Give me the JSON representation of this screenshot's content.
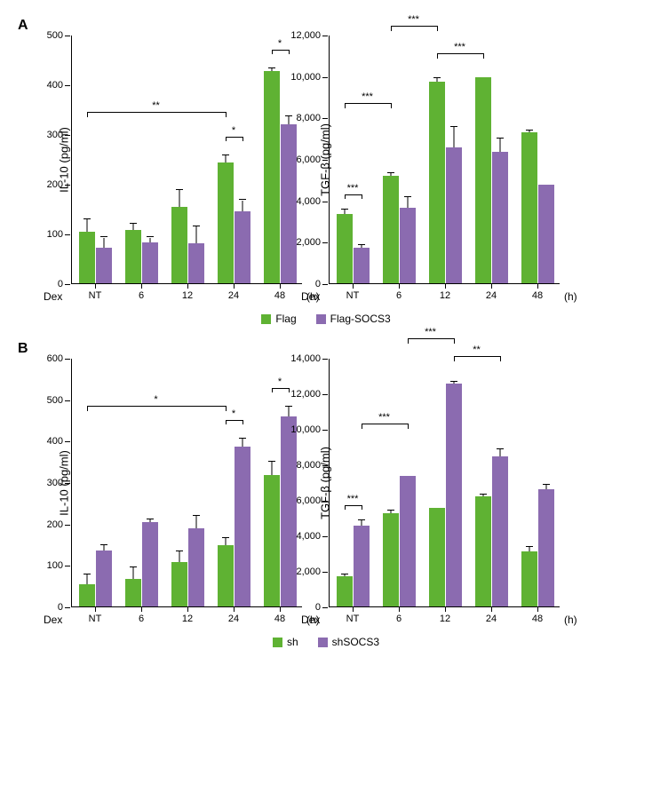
{
  "colors": {
    "series1": "#5fb233",
    "series2": "#8b6bb0",
    "axis": "#000000",
    "bg": "#ffffff"
  },
  "legendA": {
    "s1": "Flag",
    "s2": "Flag-SOCS3"
  },
  "legendB": {
    "s1": "sh",
    "s2": "shSOCS3"
  },
  "xaxis_left_label": "Dex",
  "xaxis_right_label": "(h)",
  "panels": {
    "A": {
      "label": "A",
      "left": {
        "ylabel": "IL-10 (pg/ml)",
        "ylim": [
          0,
          500
        ],
        "ytick_step": 100,
        "categories": [
          "NT",
          "6",
          "12",
          "24",
          "48"
        ],
        "series1": [
          103,
          108,
          153,
          243,
          427
        ],
        "series1_err": [
          25,
          12,
          35,
          15,
          5
        ],
        "series2": [
          72,
          82,
          80,
          145,
          320
        ],
        "series2_err": [
          20,
          10,
          35,
          22,
          15
        ],
        "sig": [
          {
            "from": 0,
            "to": 3,
            "series": "s1",
            "label": "**",
            "yoff": 50
          },
          {
            "pair": 3,
            "label": "*",
            "yoff": 22
          },
          {
            "pair": 4,
            "label": "*",
            "yoff": 22
          }
        ]
      },
      "right": {
        "ylabel": "TGF-β (pg/ml)",
        "ylim": [
          0,
          12000
        ],
        "ytick_step": 2000,
        "categories": [
          "NT",
          "6",
          "12",
          "24",
          "48"
        ],
        "series1": [
          3350,
          5180,
          9720,
          9960,
          7270
        ],
        "series1_err": [
          200,
          120,
          180,
          0,
          90
        ],
        "series2": [
          1720,
          3650,
          6550,
          6360,
          4760
        ],
        "series2_err": [
          120,
          520,
          990,
          620,
          0
        ],
        "sig": [
          {
            "pair": 0,
            "label": "***",
            "yoff": 18
          },
          {
            "from": 0,
            "to": 1,
            "series": "s1",
            "label": "***",
            "yoff": 80
          },
          {
            "from": 1,
            "to": 2,
            "series": "s1",
            "label": "***",
            "yoff": 60
          },
          {
            "from": 2,
            "to": 3,
            "series": "s1",
            "label": "***",
            "yoff": 28
          }
        ]
      }
    },
    "B": {
      "label": "B",
      "left": {
        "ylabel": "IL-10 (pg/ml)",
        "ylim": [
          0,
          600
        ],
        "ytick_step": 100,
        "categories": [
          "NT",
          "6",
          "12",
          "24",
          "48"
        ],
        "series1": [
          53,
          67,
          108,
          148,
          318
        ],
        "series1_err": [
          25,
          28,
          24,
          17,
          32
        ],
        "series2": [
          135,
          203,
          188,
          386,
          458
        ],
        "series2_err": [
          13,
          7,
          30,
          20,
          25
        ],
        "sig": [
          {
            "from": 0,
            "to": 3,
            "series": "s1",
            "label": "*",
            "yoff": 150
          },
          {
            "pair": 3,
            "label": "*",
            "yoff": 22
          },
          {
            "pair": 4,
            "label": "*",
            "yoff": 22
          }
        ]
      },
      "right": {
        "ylabel": "TGF-β (pg/ml)",
        "ylim": [
          0,
          14000
        ],
        "ytick_step": 2000,
        "categories": [
          "NT",
          "6",
          "12",
          "24",
          "48"
        ],
        "series1": [
          1710,
          5270,
          5570,
          6220,
          3100
        ],
        "series1_err": [
          80,
          120,
          0,
          100,
          260
        ],
        "series2": [
          4560,
          7340,
          12550,
          8450,
          6580
        ],
        "series2_err": [
          280,
          0,
          120,
          400,
          270
        ],
        "sig": [
          {
            "from": 0,
            "to": 1,
            "series": "s2",
            "label": "***",
            "yoff": 60
          },
          {
            "pair": 0,
            "label": "***",
            "yoff": 18
          },
          {
            "from": 1,
            "to": 2,
            "series": "s2",
            "label": "***",
            "yoff": 50
          },
          {
            "from": 2,
            "to": 3,
            "series": "s2",
            "label": "**",
            "yoff": 30
          }
        ]
      }
    }
  }
}
